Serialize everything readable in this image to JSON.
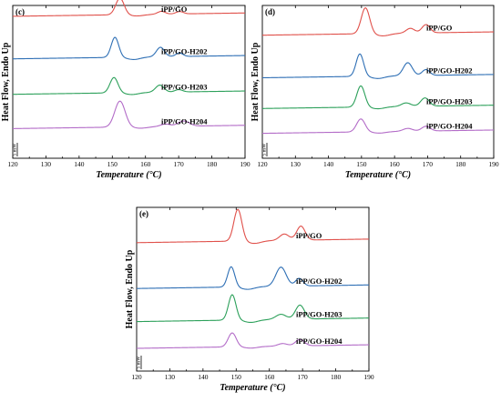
{
  "chart_data": [
    {
      "panel": "(c)",
      "type": "line",
      "xlabel": "Temperature (°C)",
      "ylabel": "Heat Flow, Endo Up",
      "xlim": [
        120,
        190
      ],
      "xticks": [
        120,
        130,
        140,
        150,
        160,
        170,
        180,
        190
      ],
      "scale_bar": "5 mW",
      "series": [
        {
          "name": "iPP/GO",
          "color": "#e0504a",
          "baseline": 0.15,
          "tilt": -0.02,
          "peaks": [
            {
              "x": 152.3,
              "h": 0.7,
              "w": 1.8
            },
            {
              "x": 164.8,
              "h": 0.12,
              "w": 1.6
            },
            {
              "x": 170.3,
              "h": 0.1,
              "w": 1.6
            }
          ],
          "dips": [
            {
              "x": 157.5,
              "h": 0.06,
              "w": 3.0
            }
          ]
        },
        {
          "name": "iPP/GO-H202",
          "color": "#2e6fb5",
          "baseline": 1.95,
          "tilt": -0.02,
          "peaks": [
            {
              "x": 150.8,
              "h": 0.85,
              "w": 1.6
            },
            {
              "x": 164.5,
              "h": 0.4,
              "w": 1.7
            },
            {
              "x": 170.2,
              "h": 0.15,
              "w": 1.5
            }
          ],
          "dips": [
            {
              "x": 156.5,
              "h": 0.1,
              "w": 2.8
            }
          ]
        },
        {
          "name": "iPP/GO-H203",
          "color": "#2ca05a",
          "baseline": 3.45,
          "tilt": -0.02,
          "peaks": [
            {
              "x": 150.5,
              "h": 0.65,
              "w": 1.7
            },
            {
              "x": 164.3,
              "h": 0.3,
              "w": 1.8
            },
            {
              "x": 170.0,
              "h": 0.1,
              "w": 1.6
            }
          ],
          "dips": [
            {
              "x": 156.0,
              "h": 0.08,
              "w": 2.8
            }
          ]
        },
        {
          "name": "iPP/GO-H204",
          "color": "#b36cc8",
          "baseline": 4.9,
          "tilt": -0.02,
          "peaks": [
            {
              "x": 152.3,
              "h": 1.1,
              "w": 2.2
            },
            {
              "x": 166.0,
              "h": 0.1,
              "w": 2.0
            },
            {
              "x": 171.5,
              "h": 0.22,
              "w": 2.4
            }
          ],
          "dips": [
            {
              "x": 158.5,
              "h": 0.06,
              "w": 3.0
            }
          ]
        }
      ]
    },
    {
      "panel": "(d)",
      "type": "line",
      "xlabel": "Temperature (°C)",
      "ylabel": "Heat Flow, Endo Up",
      "xlim": [
        120,
        190
      ],
      "xticks": [
        120,
        130,
        140,
        150,
        160,
        170,
        180,
        190
      ],
      "scale_bar": "5 mW",
      "series": [
        {
          "name": "iPP/GO",
          "color": "#e0504a",
          "baseline": 0.95,
          "tilt": -0.02,
          "peaks": [
            {
              "x": 151.2,
              "h": 1.1,
              "w": 1.8
            },
            {
              "x": 164.8,
              "h": 0.2,
              "w": 1.8
            },
            {
              "x": 169.5,
              "h": 0.35,
              "w": 1.7
            }
          ],
          "dips": [
            {
              "x": 156.5,
              "h": 0.1,
              "w": 3.0
            }
          ]
        },
        {
          "name": "iPP/GO-H202",
          "color": "#2e6fb5",
          "baseline": 2.75,
          "tilt": -0.02,
          "peaks": [
            {
              "x": 149.5,
              "h": 0.95,
              "w": 1.6
            },
            {
              "x": 164.0,
              "h": 0.55,
              "w": 1.9
            },
            {
              "x": 169.5,
              "h": 0.25,
              "w": 1.6
            }
          ],
          "dips": [
            {
              "x": 155.0,
              "h": 0.1,
              "w": 2.8
            }
          ]
        },
        {
          "name": "iPP/GO-H203",
          "color": "#2ca05a",
          "baseline": 4.05,
          "tilt": -0.02,
          "peaks": [
            {
              "x": 149.8,
              "h": 0.9,
              "w": 1.7
            },
            {
              "x": 163.5,
              "h": 0.15,
              "w": 2.0
            },
            {
              "x": 169.2,
              "h": 0.35,
              "w": 1.8
            }
          ],
          "dips": [
            {
              "x": 155.0,
              "h": 0.08,
              "w": 2.8
            }
          ]
        },
        {
          "name": "iPP/GO-H204",
          "color": "#b36cc8",
          "baseline": 5.1,
          "tilt": -0.02,
          "peaks": [
            {
              "x": 149.8,
              "h": 0.55,
              "w": 1.8
            },
            {
              "x": 164.0,
              "h": 0.12,
              "w": 2.0
            },
            {
              "x": 169.5,
              "h": 0.2,
              "w": 1.8
            }
          ],
          "dips": [
            {
              "x": 155.5,
              "h": 0.06,
              "w": 2.8
            }
          ]
        }
      ]
    },
    {
      "panel": "(e)",
      "type": "line",
      "xlabel": "Temperature (°C)",
      "ylabel": "Heat Flow, Endo Up",
      "xlim": [
        120,
        190
      ],
      "xticks": [
        120,
        130,
        140,
        150,
        160,
        170,
        180,
        190
      ],
      "scale_bar": "5 mW",
      "series": [
        {
          "name": "iPP/GO",
          "color": "#e0504a",
          "baseline": 1.1,
          "tilt": -0.02,
          "peaks": [
            {
              "x": 150.5,
              "h": 1.25,
              "w": 1.7
            },
            {
              "x": 164.5,
              "h": 0.25,
              "w": 2.0
            },
            {
              "x": 169.5,
              "h": 0.55,
              "w": 1.8
            }
          ],
          "dips": [
            {
              "x": 155.5,
              "h": 0.1,
              "w": 2.8
            }
          ]
        },
        {
          "name": "iPP/GO-H202",
          "color": "#2e6fb5",
          "baseline": 2.9,
          "tilt": -0.02,
          "peaks": [
            {
              "x": 148.5,
              "h": 0.8,
              "w": 1.5
            },
            {
              "x": 163.5,
              "h": 0.75,
              "w": 2.2
            },
            {
              "x": 169.0,
              "h": 0.3,
              "w": 1.6
            }
          ],
          "dips": [
            {
              "x": 153.5,
              "h": 0.1,
              "w": 2.8
            }
          ]
        },
        {
          "name": "iPP/GO-H203",
          "color": "#2ca05a",
          "baseline": 4.2,
          "tilt": -0.02,
          "peaks": [
            {
              "x": 148.8,
              "h": 1.0,
              "w": 1.6
            },
            {
              "x": 163.5,
              "h": 0.2,
              "w": 2.2
            },
            {
              "x": 169.2,
              "h": 0.55,
              "w": 1.9
            }
          ],
          "dips": [
            {
              "x": 154.5,
              "h": 0.1,
              "w": 2.8
            }
          ]
        },
        {
          "name": "iPP/GO-H204",
          "color": "#b36cc8",
          "baseline": 5.25,
          "tilt": -0.02,
          "peaks": [
            {
              "x": 148.8,
              "h": 0.55,
              "w": 1.7
            },
            {
              "x": 164.0,
              "h": 0.1,
              "w": 2.0
            },
            {
              "x": 169.2,
              "h": 0.25,
              "w": 1.9
            }
          ],
          "dips": [
            {
              "x": 154.5,
              "h": 0.06,
              "w": 2.8
            }
          ]
        }
      ]
    }
  ]
}
